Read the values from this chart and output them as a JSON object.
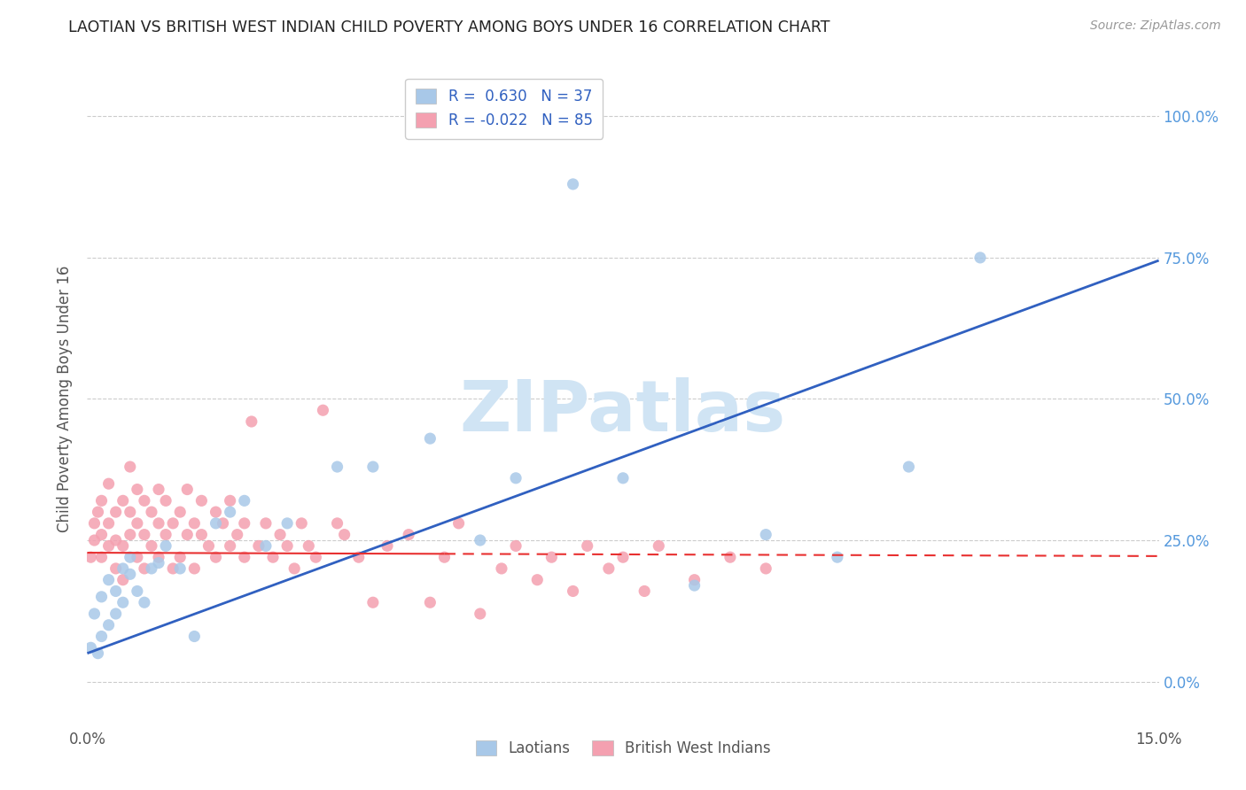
{
  "title": "LAOTIAN VS BRITISH WEST INDIAN CHILD POVERTY AMONG BOYS UNDER 16 CORRELATION CHART",
  "source": "Source: ZipAtlas.com",
  "ylabel": "Child Poverty Among Boys Under 16",
  "legend_labels": [
    "Laotians",
    "British West Indians"
  ],
  "laotian_R": 0.63,
  "laotian_N": 37,
  "bwi_R": -0.022,
  "bwi_N": 85,
  "laotian_color": "#a8c8e8",
  "bwi_color": "#f4a0b0",
  "laotian_line_color": "#3060c0",
  "bwi_line_color": "#e83030",
  "bwi_line_solid_color": "#e83030",
  "watermark_color": "#d0e4f4",
  "xmin": 0.0,
  "xmax": 0.15,
  "ymin": -0.08,
  "ymax": 1.08,
  "ytick_vals": [
    0.0,
    0.25,
    0.5,
    0.75,
    1.0
  ],
  "ytick_labels": [
    "0.0%",
    "25.0%",
    "50.0%",
    "75.0%",
    "100.0%"
  ],
  "laotian_x": [
    0.0005,
    0.001,
    0.0015,
    0.002,
    0.002,
    0.003,
    0.003,
    0.004,
    0.004,
    0.005,
    0.005,
    0.006,
    0.006,
    0.007,
    0.008,
    0.009,
    0.01,
    0.011,
    0.013,
    0.015,
    0.018,
    0.02,
    0.022,
    0.025,
    0.028,
    0.035,
    0.04,
    0.048,
    0.055,
    0.06,
    0.068,
    0.075,
    0.085,
    0.095,
    0.105,
    0.115,
    0.125
  ],
  "laotian_y": [
    0.06,
    0.12,
    0.05,
    0.15,
    0.08,
    0.18,
    0.1,
    0.16,
    0.12,
    0.2,
    0.14,
    0.19,
    0.22,
    0.16,
    0.14,
    0.2,
    0.21,
    0.24,
    0.2,
    0.08,
    0.28,
    0.3,
    0.32,
    0.24,
    0.28,
    0.38,
    0.38,
    0.43,
    0.25,
    0.36,
    0.88,
    0.36,
    0.17,
    0.26,
    0.22,
    0.38,
    0.75
  ],
  "bwi_x": [
    0.0005,
    0.001,
    0.001,
    0.0015,
    0.002,
    0.002,
    0.002,
    0.003,
    0.003,
    0.003,
    0.004,
    0.004,
    0.004,
    0.005,
    0.005,
    0.005,
    0.006,
    0.006,
    0.006,
    0.007,
    0.007,
    0.007,
    0.008,
    0.008,
    0.008,
    0.009,
    0.009,
    0.01,
    0.01,
    0.01,
    0.011,
    0.011,
    0.012,
    0.012,
    0.013,
    0.013,
    0.014,
    0.014,
    0.015,
    0.015,
    0.016,
    0.016,
    0.017,
    0.018,
    0.018,
    0.019,
    0.02,
    0.02,
    0.021,
    0.022,
    0.022,
    0.023,
    0.024,
    0.025,
    0.026,
    0.027,
    0.028,
    0.029,
    0.03,
    0.031,
    0.032,
    0.033,
    0.035,
    0.036,
    0.038,
    0.04,
    0.042,
    0.045,
    0.048,
    0.05,
    0.052,
    0.055,
    0.058,
    0.06,
    0.063,
    0.065,
    0.068,
    0.07,
    0.073,
    0.075,
    0.078,
    0.08,
    0.085,
    0.09,
    0.095
  ],
  "bwi_y": [
    0.22,
    0.25,
    0.28,
    0.3,
    0.22,
    0.26,
    0.32,
    0.24,
    0.28,
    0.35,
    0.2,
    0.25,
    0.3,
    0.18,
    0.24,
    0.32,
    0.26,
    0.3,
    0.38,
    0.22,
    0.28,
    0.34,
    0.2,
    0.26,
    0.32,
    0.24,
    0.3,
    0.22,
    0.28,
    0.34,
    0.26,
    0.32,
    0.2,
    0.28,
    0.22,
    0.3,
    0.26,
    0.34,
    0.2,
    0.28,
    0.26,
    0.32,
    0.24,
    0.22,
    0.3,
    0.28,
    0.24,
    0.32,
    0.26,
    0.28,
    0.22,
    0.46,
    0.24,
    0.28,
    0.22,
    0.26,
    0.24,
    0.2,
    0.28,
    0.24,
    0.22,
    0.48,
    0.28,
    0.26,
    0.22,
    0.14,
    0.24,
    0.26,
    0.14,
    0.22,
    0.28,
    0.12,
    0.2,
    0.24,
    0.18,
    0.22,
    0.16,
    0.24,
    0.2,
    0.22,
    0.16,
    0.24,
    0.18,
    0.22,
    0.2
  ],
  "laotian_line_x0": 0.0,
  "laotian_line_y0": 0.05,
  "laotian_line_x1": 0.15,
  "laotian_line_y1": 0.745,
  "bwi_line_x0": 0.0,
  "bwi_line_y0": 0.228,
  "bwi_line_x1": 0.15,
  "bwi_line_y1": 0.222
}
